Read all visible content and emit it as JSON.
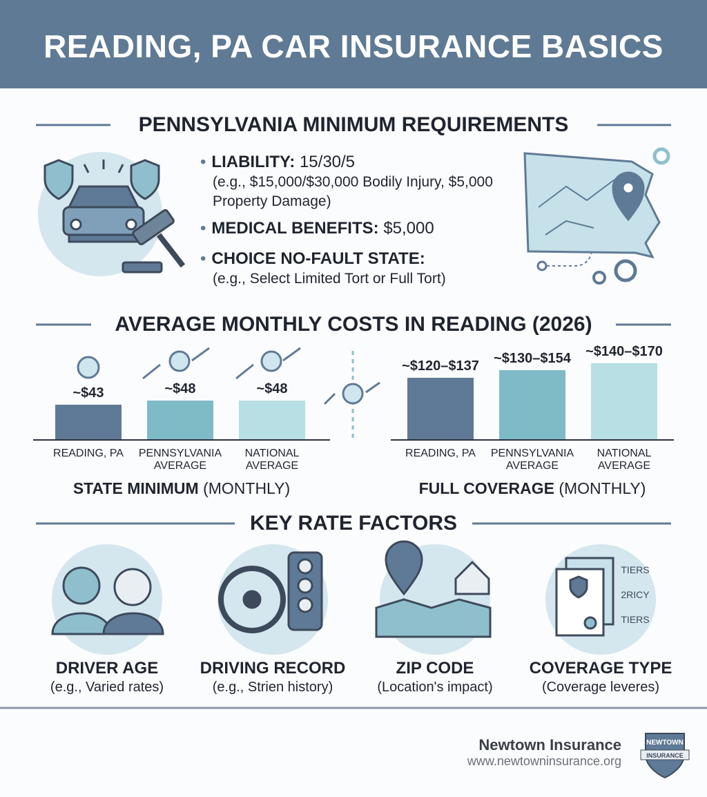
{
  "header": {
    "title": "READING, PA CAR INSURANCE BASICS"
  },
  "requirements": {
    "heading": "PENNSYLVANIA MINIMUM REQUIREMENTS",
    "items": [
      {
        "label": "LIABILITY:",
        "value": "15/30/5",
        "note": "(e.g., $15,000/$30,000 Bodily Injury, $5,000 Property Damage)"
      },
      {
        "label": "MEDICAL BENEFITS:",
        "value": "$5,000"
      },
      {
        "label": "CHOICE NO-FAULT STATE:",
        "note": "(e.g., Select Limited Tort or Full Tort)"
      }
    ]
  },
  "costs": {
    "heading": "AVERAGE MONTHLY COSTS IN READING (2026)"
  },
  "chart_data": [
    {
      "type": "bar",
      "title": "STATE MINIMUM",
      "title_note": "(MONTHLY)",
      "categories": [
        "READING, PA",
        "PENNSYLVANIA AVERAGE",
        "NATIONAL AVERAGE"
      ],
      "values": [
        43,
        48,
        48
      ],
      "value_labels": [
        "~$43",
        "~$48",
        "~$48"
      ],
      "colors": [
        "#5f7a96",
        "#7fbac7",
        "#b7dfe4"
      ]
    },
    {
      "type": "bar",
      "title": "FULL COVERAGE",
      "title_note": "(MONTHLY)",
      "categories": [
        "READING, PA",
        "PENNSYLVANIA AVERAGE",
        "NATIONAL AVERAGE"
      ],
      "values": [
        [
          120,
          137
        ],
        [
          130,
          154
        ],
        [
          140,
          170
        ]
      ],
      "value_labels": [
        "~$120–$137",
        "~$130–$154",
        "~$140–$170"
      ],
      "colors": [
        "#5f7a96",
        "#7fbac7",
        "#b7dfe4"
      ]
    }
  ],
  "factors": {
    "heading": "KEY RATE FACTORS",
    "items": [
      {
        "title": "DRIVER AGE",
        "note": "(e.g., Varied rates)"
      },
      {
        "title": "DRIVING RECORD",
        "note": "(e.g., Strien history)"
      },
      {
        "title": "ZIP CODE",
        "note": "(Location's impact)"
      },
      {
        "title": "COVERAGE TYPE",
        "note": "(Coverage leveres)"
      }
    ],
    "icon_texts": [
      "TIERS",
      "2RICY",
      "TIERS"
    ]
  },
  "footer": {
    "company": "Newtown Insurance",
    "url": "www.newtowninsurance.org",
    "badge_top": "NEWTOWN",
    "badge": "INSURANCE"
  }
}
